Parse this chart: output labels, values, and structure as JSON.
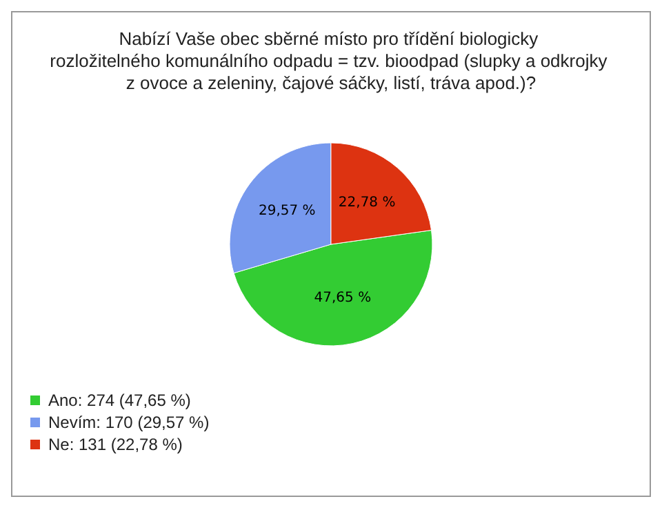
{
  "chart_data": {
    "type": "pie",
    "title": "Nabízí Vaše obec sběrné místo pro třídění biologicky rozložitelného komunálního odpadu = tzv. bioodpad (slupky a odkrojky z ovoce a zeleniny, čajové sáčky, listí, tráva apod.)?",
    "categories": [
      "Ano: 274 (47,65 %)",
      "Nevím: 170 (29,57 %)",
      "Ne: 131 (22,78 %)"
    ],
    "values": [
      47.65,
      29.57,
      22.78
    ],
    "value_labels": [
      "47,65 %",
      "29,57 %",
      "22,78 %"
    ],
    "colors": [
      "#33cc33",
      "#7799ee",
      "#dd3311"
    ],
    "legend": "bottom left"
  }
}
